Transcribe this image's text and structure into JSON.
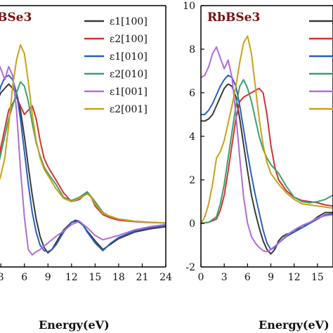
{
  "chart_data": [
    {
      "type": "line",
      "title": "BSe3",
      "title_visible_prefix_clipped": true,
      "xlabel": "Energy(eV)",
      "ylabel": "",
      "xlim": [
        2,
        24
      ],
      "ylim": [
        -2,
        10
      ],
      "x_tick_labels": [
        "3",
        "6",
        "9",
        "12",
        "15",
        "18",
        "21",
        "24"
      ],
      "legend": [
        "ε1[100]",
        "ε2[100]",
        "ε1[010]",
        "ε2[010]",
        "ε1[001]",
        "ε2[001]"
      ],
      "legend_position": "top-right",
      "series": [
        {
          "name": "ε1[100]",
          "color": "#3a3a3a",
          "x": [
            2.0,
            3.0,
            4.0,
            5.0,
            5.5,
            6.0,
            6.5,
            7.0,
            7.5,
            8.0,
            8.5,
            9.0,
            9.5,
            10.0,
            11.0,
            12.0,
            12.5,
            13.0,
            13.5,
            14.0,
            15.0,
            16.0,
            17.0,
            18.0,
            20.0,
            22.0,
            24.0
          ],
          "y": [
            5.2,
            6.0,
            6.4,
            6.0,
            5.2,
            4.0,
            2.6,
            1.3,
            0.2,
            -0.6,
            -1.1,
            -1.35,
            -1.2,
            -0.9,
            -0.3,
            0.05,
            0.1,
            0.05,
            -0.1,
            -0.35,
            -0.8,
            -1.2,
            -0.95,
            -0.7,
            -0.4,
            -0.25,
            -0.15
          ]
        },
        {
          "name": "ε2[100]",
          "color": "#d23232",
          "x": [
            2.0,
            3.0,
            4.0,
            5.0,
            5.5,
            6.0,
            6.5,
            7.0,
            7.5,
            8.0,
            8.5,
            9.0,
            10.0,
            11.0,
            12.0,
            13.0,
            14.0,
            14.5,
            15.0,
            16.0,
            17.0,
            18.0,
            20.0,
            22.0,
            24.0
          ],
          "y": [
            1.5,
            3.5,
            5.2,
            5.8,
            5.4,
            5.0,
            5.2,
            5.4,
            4.8,
            3.8,
            3.0,
            2.6,
            2.0,
            1.4,
            1.0,
            1.1,
            1.4,
            1.2,
            0.8,
            0.4,
            0.25,
            0.15,
            0.08,
            0.04,
            0.02
          ]
        },
        {
          "name": "ε1[010]",
          "color": "#2b5fc0",
          "x": [
            2.0,
            3.0,
            3.5,
            4.0,
            4.5,
            5.0,
            5.5,
            6.0,
            6.5,
            7.0,
            7.5,
            8.0,
            8.5,
            9.0,
            9.5,
            10.0,
            11.0,
            12.0,
            12.5,
            13.0,
            13.5,
            14.0,
            15.0,
            16.0,
            17.0,
            18.0,
            20.0,
            22.0,
            24.0
          ],
          "y": [
            5.0,
            6.3,
            6.7,
            6.8,
            6.6,
            6.0,
            4.8,
            3.3,
            1.8,
            0.5,
            -0.4,
            -1.0,
            -1.25,
            -1.3,
            -1.2,
            -1.0,
            -0.4,
            0.05,
            0.15,
            0.1,
            -0.1,
            -0.4,
            -0.9,
            -1.25,
            -0.9,
            -0.65,
            -0.35,
            -0.2,
            -0.1
          ]
        },
        {
          "name": "ε2[010]",
          "color": "#3fa06b",
          "x": [
            2.0,
            3.0,
            4.0,
            5.0,
            5.5,
            6.0,
            6.5,
            7.0,
            7.5,
            8.0,
            8.5,
            9.0,
            10.0,
            11.0,
            12.0,
            13.0,
            14.0,
            15.0,
            16.0,
            17.0,
            18.0,
            20.0,
            22.0,
            24.0
          ],
          "y": [
            1.5,
            3.2,
            4.8,
            6.0,
            6.5,
            6.3,
            5.6,
            4.6,
            3.7,
            3.1,
            2.6,
            2.3,
            1.8,
            1.2,
            1.05,
            1.2,
            1.45,
            1.0,
            0.5,
            0.3,
            0.2,
            0.1,
            0.05,
            0.02
          ]
        },
        {
          "name": "ε1[001]",
          "color": "#b06cd8",
          "x": [
            2.0,
            2.5,
            3.0,
            3.5,
            4.0,
            4.5,
            5.0,
            5.5,
            6.0,
            6.5,
            7.0,
            7.5,
            8.0,
            9.0,
            10.0,
            11.0,
            12.0,
            13.0,
            14.0,
            15.0,
            16.0,
            18.0,
            20.0,
            22.0,
            24.0
          ],
          "y": [
            6.8,
            7.5,
            7.1,
            6.6,
            7.2,
            6.8,
            5.2,
            2.5,
            0.3,
            -1.2,
            -1.45,
            -1.3,
            -1.2,
            -0.9,
            -0.6,
            -0.35,
            -0.05,
            0.1,
            -0.2,
            -0.55,
            -0.75,
            -0.55,
            -0.3,
            -0.15,
            -0.05
          ]
        },
        {
          "name": "ε2[001]",
          "color": "#c9a21a",
          "x": [
            2.0,
            2.5,
            3.0,
            3.5,
            4.0,
            4.5,
            5.0,
            5.5,
            6.0,
            6.5,
            7.0,
            7.5,
            8.0,
            8.5,
            9.0,
            10.0,
            11.0,
            12.0,
            13.0,
            14.0,
            14.5,
            15.0,
            16.0,
            18.0,
            20.0,
            22.0,
            24.0
          ],
          "y": [
            1.4,
            1.6,
            2.2,
            3.0,
            4.5,
            6.3,
            7.5,
            8.2,
            7.8,
            6.5,
            5.0,
            3.8,
            3.0,
            2.5,
            2.2,
            1.6,
            1.15,
            1.0,
            1.15,
            1.35,
            1.2,
            0.9,
            0.45,
            0.2,
            0.1,
            0.05,
            0.02
          ]
        }
      ]
    },
    {
      "type": "line",
      "title": "RbBSe3",
      "xlabel": "Energy(eV)",
      "ylabel": "",
      "xlim": [
        0,
        17
      ],
      "ylim": [
        -2,
        10
      ],
      "y_tick_labels": [
        "-2",
        "0",
        "2",
        "4",
        "6",
        "8",
        "10"
      ],
      "x_tick_labels": [
        "0",
        "3",
        "6",
        "9",
        "12",
        "15"
      ],
      "legend_position": "top-right",
      "series": [
        {
          "name": "ε1[100]",
          "color": "#3a3a3a",
          "x": [
            0,
            0.5,
            1,
            1.5,
            2,
            2.5,
            3,
            3.5,
            4,
            4.5,
            5,
            5.5,
            6,
            6.5,
            7,
            7.5,
            8,
            8.5,
            9,
            9.5,
            10,
            10.5,
            11,
            12,
            13,
            14,
            15,
            16,
            17
          ],
          "y": [
            4.7,
            4.7,
            4.8,
            5.0,
            5.4,
            5.8,
            6.2,
            6.4,
            6.3,
            5.8,
            4.8,
            3.6,
            2.4,
            1.3,
            0.5,
            -0.2,
            -0.8,
            -1.2,
            -1.4,
            -1.2,
            -0.8,
            -0.6,
            -0.5,
            -0.4,
            -0.1,
            0.0,
            0.3,
            0.5,
            0.5
          ]
        },
        {
          "name": "ε2[100]",
          "color": "#d23232",
          "x": [
            0,
            1,
            2,
            2.5,
            3,
            3.5,
            4,
            4.5,
            5,
            5.5,
            6,
            6.5,
            7,
            7.5,
            8,
            8.5,
            9,
            9.5,
            10,
            11,
            12,
            13,
            14,
            15,
            16,
            17
          ],
          "y": [
            0.0,
            0.05,
            0.2,
            0.6,
            1.3,
            2.4,
            3.6,
            4.8,
            5.6,
            5.8,
            5.9,
            6.0,
            6.1,
            6.2,
            6.0,
            5.0,
            3.6,
            2.6,
            2.0,
            1.5,
            1.2,
            1.05,
            1.0,
            0.95,
            0.85,
            0.8
          ]
        },
        {
          "name": "ε1[010]",
          "color": "#2b5fc0",
          "x": [
            0,
            0.5,
            1,
            1.5,
            2,
            2.5,
            3,
            3.5,
            4,
            4.5,
            5,
            5.5,
            6,
            6.5,
            7,
            7.5,
            8,
            8.5,
            9,
            9.5,
            10,
            11,
            12,
            13,
            14,
            15,
            16,
            17
          ],
          "y": [
            5.0,
            5.0,
            5.2,
            5.5,
            5.9,
            6.3,
            6.6,
            6.8,
            6.7,
            6.3,
            5.4,
            4.3,
            3.2,
            2.2,
            1.3,
            0.5,
            -0.3,
            -0.9,
            -1.2,
            -1.1,
            -0.9,
            -0.6,
            -0.4,
            -0.2,
            0.0,
            0.2,
            0.4,
            0.45
          ]
        },
        {
          "name": "ε2[010]",
          "color": "#3fa06b",
          "x": [
            0,
            1,
            2,
            2.5,
            3,
            3.5,
            4,
            4.5,
            5,
            5.5,
            6,
            6.5,
            7,
            7.5,
            8,
            8.5,
            9,
            9.5,
            10,
            11,
            12,
            13,
            14,
            15,
            16,
            17
          ],
          "y": [
            0.0,
            0.05,
            0.3,
            0.9,
            1.8,
            3.0,
            4.2,
            5.4,
            6.3,
            6.6,
            6.2,
            5.6,
            4.8,
            4.0,
            3.4,
            3.0,
            2.7,
            2.5,
            2.3,
            1.7,
            1.2,
            1.0,
            0.95,
            1.0,
            1.1,
            1.3
          ]
        },
        {
          "name": "ε1[001]",
          "color": "#b06cd8",
          "x": [
            0,
            0.5,
            1,
            1.5,
            2,
            2.5,
            3,
            3.5,
            4,
            4.5,
            5,
            5.5,
            6,
            6.5,
            7,
            7.5,
            8,
            8.5,
            9,
            10,
            11,
            12,
            13,
            14,
            15,
            16,
            17
          ],
          "y": [
            6.7,
            6.8,
            7.2,
            7.8,
            8.1,
            7.6,
            7.1,
            7.5,
            6.7,
            5.0,
            3.0,
            1.2,
            0.0,
            -0.6,
            -0.9,
            -1.1,
            -1.25,
            -1.3,
            -1.2,
            -0.9,
            -0.55,
            -0.3,
            -0.1,
            0.05,
            0.25,
            0.35,
            0.4
          ]
        },
        {
          "name": "ε2[001]",
          "color": "#c9a21a",
          "x": [
            0,
            0.5,
            1,
            1.5,
            2,
            2.5,
            3,
            3.5,
            4,
            4.5,
            5,
            5.5,
            6,
            6.5,
            7,
            7.5,
            8,
            8.5,
            9,
            10,
            11,
            12,
            13,
            14,
            15,
            16,
            17
          ],
          "y": [
            0.0,
            0.3,
            0.9,
            1.8,
            3.0,
            3.3,
            3.8,
            4.6,
            5.4,
            6.3,
            7.4,
            8.3,
            8.6,
            7.8,
            6.3,
            4.8,
            3.6,
            2.8,
            2.3,
            1.8,
            1.4,
            1.1,
            0.9,
            0.85,
            0.8,
            0.75,
            0.7
          ]
        }
      ]
    }
  ]
}
